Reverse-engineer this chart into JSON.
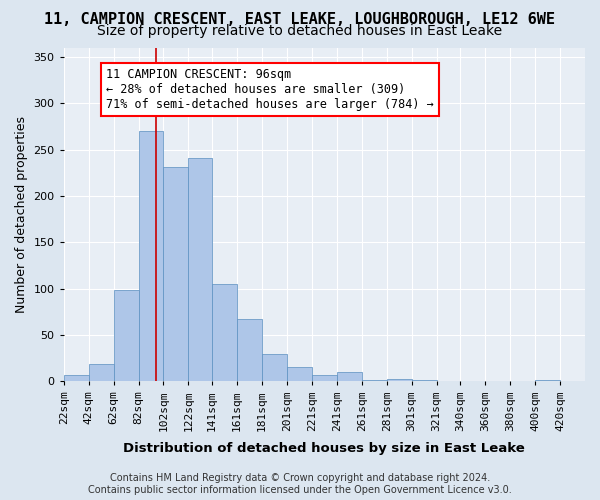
{
  "title_line1": "11, CAMPION CRESCENT, EAST LEAKE, LOUGHBOROUGH, LE12 6WE",
  "title_line2": "Size of property relative to detached houses in East Leake",
  "xlabel": "Distribution of detached houses by size in East Leake",
  "ylabel": "Number of detached properties",
  "bar_color": "#aec6e8",
  "bar_edge_color": "#5a8fc0",
  "background_color": "#e8eef5",
  "grid_color": "#ffffff",
  "property_line_color": "#cc0000",
  "property_value": 96,
  "annotation_text": "11 CAMPION CRESCENT: 96sqm\n← 28% of detached houses are smaller (309)\n71% of semi-detached houses are larger (784) →",
  "tick_labels": [
    "22sqm",
    "42sqm",
    "62sqm",
    "82sqm",
    "102sqm",
    "122sqm",
    "141sqm",
    "161sqm",
    "181sqm",
    "201sqm",
    "221sqm",
    "241sqm",
    "261sqm",
    "281sqm",
    "301sqm",
    "321sqm",
    "340sqm",
    "360sqm",
    "380sqm",
    "400sqm",
    "420sqm"
  ],
  "bin_edges": [
    22,
    42,
    62,
    82,
    102,
    122,
    141,
    161,
    181,
    201,
    221,
    241,
    261,
    281,
    301,
    321,
    340,
    360,
    380,
    400,
    420
  ],
  "bar_heights": [
    7,
    19,
    99,
    270,
    231,
    241,
    105,
    67,
    30,
    15,
    7,
    10,
    2,
    3,
    2,
    0,
    0,
    0,
    0,
    2
  ],
  "ylim": [
    0,
    360
  ],
  "yticks": [
    0,
    50,
    100,
    150,
    200,
    250,
    300,
    350
  ],
  "footer_text": "Contains HM Land Registry data © Crown copyright and database right 2024.\nContains public sector information licensed under the Open Government Licence v3.0.",
  "title_fontsize": 11,
  "subtitle_fontsize": 10,
  "axis_label_fontsize": 9,
  "tick_fontsize": 8,
  "annotation_fontsize": 8.5,
  "footer_fontsize": 7,
  "fig_bg_color": "#dce6f0"
}
